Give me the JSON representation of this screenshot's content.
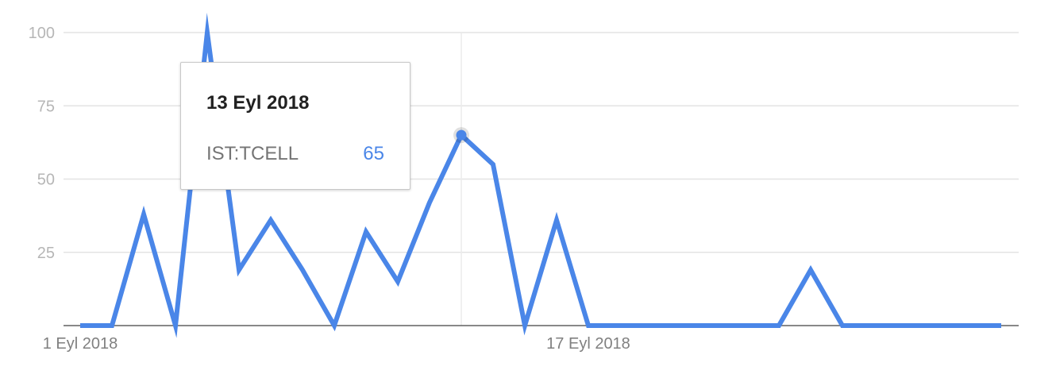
{
  "chart_data": {
    "type": "line",
    "title": "",
    "xlabel": "",
    "ylabel": "",
    "ylim": [
      0,
      100
    ],
    "yticks": [
      "25",
      "50",
      "75",
      "100"
    ],
    "xtick_labels": [
      {
        "index": 0,
        "label": "1 Eyl 2018"
      },
      {
        "index": 16,
        "label": "17 Eyl 2018"
      }
    ],
    "grid": true,
    "series": [
      {
        "color": "#4a86e8",
        "values": [
          0,
          0,
          38,
          0,
          100,
          19,
          36,
          19,
          0,
          32,
          15,
          42,
          65,
          55,
          0,
          36,
          0,
          0,
          0,
          0,
          0,
          0,
          0,
          19,
          0,
          0,
          0,
          0,
          0,
          0
        ]
      }
    ],
    "highlight_index": 12
  },
  "tooltip": {
    "date": "13 Eyl 2018",
    "series_name": "IST:TCELL",
    "value": "65"
  }
}
